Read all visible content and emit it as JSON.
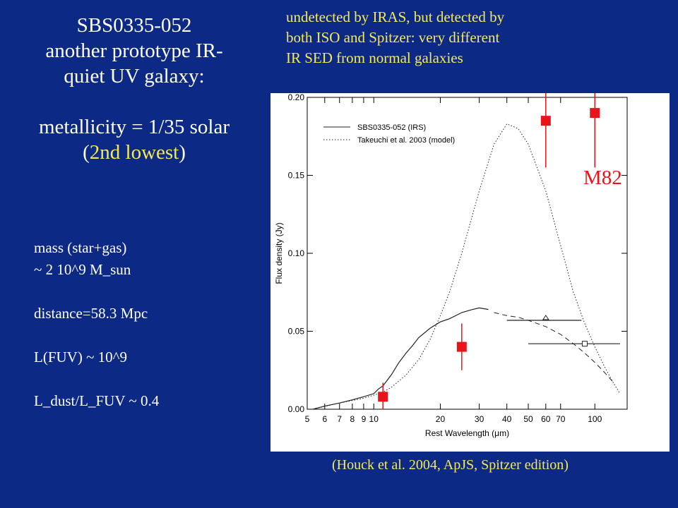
{
  "slide": {
    "title": "SBS0335-052",
    "subtitle_line1": "another prototype IR-",
    "subtitle_line2": "quiet UV galaxy:",
    "metallicity": "metallicity = 1/35 solar",
    "lowest_open": "(",
    "lowest_text": "2nd lowest",
    "lowest_close": ")",
    "details": {
      "mass_line1": "mass (star+gas)",
      "mass_line2": "~ 2 10^9 M_sun",
      "distance": "distance=58.3 Mpc",
      "lfuv": "L(FUV) ~ 10^9",
      "ldust": "L_dust/L_FUV ~ 0.4"
    },
    "note": {
      "line1": "undetected by IRAS, but detected by",
      "line2": "both ISO and Spitzer: very different",
      "line3": "IR SED from normal galaxies"
    },
    "citation": "(Houck et al. 2004, ApJS, Spitzer edition)",
    "m82_label": "M82",
    "colors": {
      "background": "#0c2a85",
      "highlight_text": "#f5e85a",
      "m82_marker": "#e8141a"
    }
  },
  "chart_data": {
    "type": "line",
    "xlabel": "Rest Wavelength (μm)",
    "ylabel": "Flux density (Jy)",
    "xscale": "log",
    "xlim": [
      5,
      140
    ],
    "ylim": [
      0,
      0.2
    ],
    "x_ticks": [
      5,
      6,
      7,
      8,
      9,
      10,
      20,
      30,
      40,
      50,
      60,
      70,
      100
    ],
    "y_ticks": [
      0.0,
      0.05,
      0.1,
      0.15,
      0.2
    ],
    "y_tick_labels": [
      "0.00",
      "0.05",
      "0.10",
      "0.15",
      "0.20"
    ],
    "legend": {
      "position": "top-left",
      "entries": [
        "SBS0335-052 (IRS)",
        "Takeuchi et al. 2003 (model)"
      ]
    },
    "series": [
      {
        "name": "SBS0335-052 (IRS)",
        "style": "solid",
        "x": [
          5.3,
          6,
          7,
          8,
          9,
          10,
          10.5,
          11,
          12,
          13,
          14,
          15,
          16,
          18,
          20,
          22,
          25,
          28,
          30,
          33
        ],
        "y": [
          0.0,
          0.002,
          0.004,
          0.006,
          0.008,
          0.01,
          0.013,
          0.015,
          0.022,
          0.03,
          0.036,
          0.041,
          0.046,
          0.052,
          0.056,
          0.058,
          0.062,
          0.064,
          0.065,
          0.064
        ]
      },
      {
        "name": "",
        "style": "dashed",
        "x": [
          35,
          40,
          45,
          50,
          60,
          70,
          80,
          90,
          100,
          110,
          120
        ],
        "y": [
          0.062,
          0.06,
          0.059,
          0.057,
          0.053,
          0.048,
          0.042,
          0.036,
          0.03,
          0.024,
          0.018
        ]
      },
      {
        "name": "Takeuchi et al. 2003 (model)",
        "style": "dotted",
        "x": [
          5.3,
          7,
          9,
          10,
          11,
          12,
          14,
          16,
          18,
          20,
          22,
          25,
          30,
          35,
          40,
          45,
          50,
          60,
          70,
          80,
          90,
          100,
          110,
          120,
          130
        ],
        "y": [
          0.0,
          0.004,
          0.007,
          0.009,
          0.011,
          0.014,
          0.022,
          0.032,
          0.045,
          0.06,
          0.075,
          0.1,
          0.14,
          0.17,
          0.183,
          0.18,
          0.17,
          0.14,
          0.105,
          0.075,
          0.055,
          0.04,
          0.028,
          0.018,
          0.01
        ]
      }
    ],
    "measurements": [
      {
        "marker": "triangle",
        "x": 60,
        "y": 0.057,
        "x_err": [
          40,
          87
        ]
      },
      {
        "marker": "square",
        "x": 90,
        "y": 0.042,
        "x_err": [
          50,
          130
        ]
      }
    ],
    "m82_points": [
      {
        "x": 11,
        "y": 0.008,
        "y_err": [
          0.0,
          0.017
        ]
      },
      {
        "x": 25,
        "y": 0.04,
        "y_err": [
          0.025,
          0.055
        ]
      },
      {
        "x": 60,
        "y": 0.185,
        "y_err": [
          0.155,
          0.2
        ]
      },
      {
        "x": 100,
        "y": 0.19,
        "y_err": [
          0.155,
          0.2
        ]
      }
    ]
  }
}
